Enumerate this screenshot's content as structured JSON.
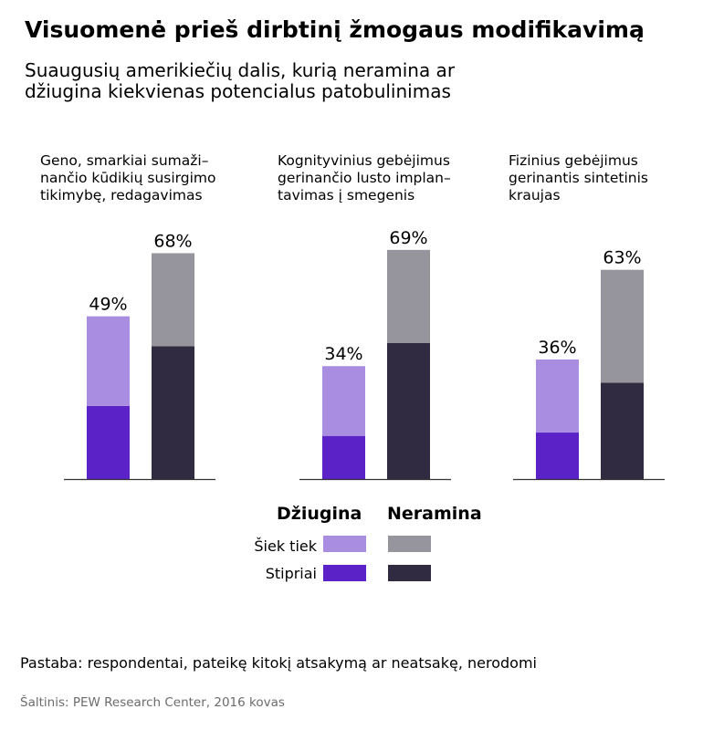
{
  "title": "Visuomenė prieš dirbtinį žmogaus modifikavimą",
  "subtitle_lines": [
    "Suaugusių amerikiečių dalis, kurią neramina ar",
    "džiugina kiekvienas potencialus patobulinimas"
  ],
  "colors": {
    "excites_somewhat": "#a98de0",
    "excites_strongly": "#5b22c8",
    "worries_somewhat": "#96949d",
    "worries_strongly": "#302b40",
    "baseline": "#333333"
  },
  "legend": {
    "col_excites": "Džiugina",
    "col_worries": "Neramina",
    "row_somewhat": "Šiek tiek",
    "row_strongly": "Stipriai"
  },
  "chart_data": {
    "type": "bar",
    "stacked": true,
    "ylim": [
      0,
      80
    ],
    "panels": [
      {
        "title_lines": [
          "Geno, smarkiai sumaži–",
          "nančio kūdikių susirgimo",
          "tikimybę, redagavimas"
        ],
        "bars": [
          {
            "group": "Džiugina",
            "strongly": 22,
            "somewhat": 27,
            "total_label": "49%"
          },
          {
            "group": "Neramina",
            "strongly": 40,
            "somewhat": 28,
            "total_label": "68%"
          }
        ]
      },
      {
        "title_lines": [
          "Kognityvinius gebėjimus",
          "gerinančio lusto implan–",
          "tavimas į smegenis"
        ],
        "bars": [
          {
            "group": "Džiugina",
            "strongly": 13,
            "somewhat": 21,
            "total_label": "34%"
          },
          {
            "group": "Neramina",
            "strongly": 41,
            "somewhat": 28,
            "total_label": "69%"
          }
        ]
      },
      {
        "title_lines": [
          "Fizinius gebėjimus",
          "gerinantis sintetinis",
          "kraujas"
        ],
        "bars": [
          {
            "group": "Džiugina",
            "strongly": 14,
            "somewhat": 22,
            "total_label": "36%"
          },
          {
            "group": "Neramina",
            "strongly": 29,
            "somewhat": 34,
            "total_label": "63%"
          }
        ]
      }
    ]
  },
  "note": "Pastaba: respondentai, pateikę kitokį atsakymą ar neatsakę, nerodomi",
  "source": "Šaltinis: PEW Research Center, 2016 kovas"
}
